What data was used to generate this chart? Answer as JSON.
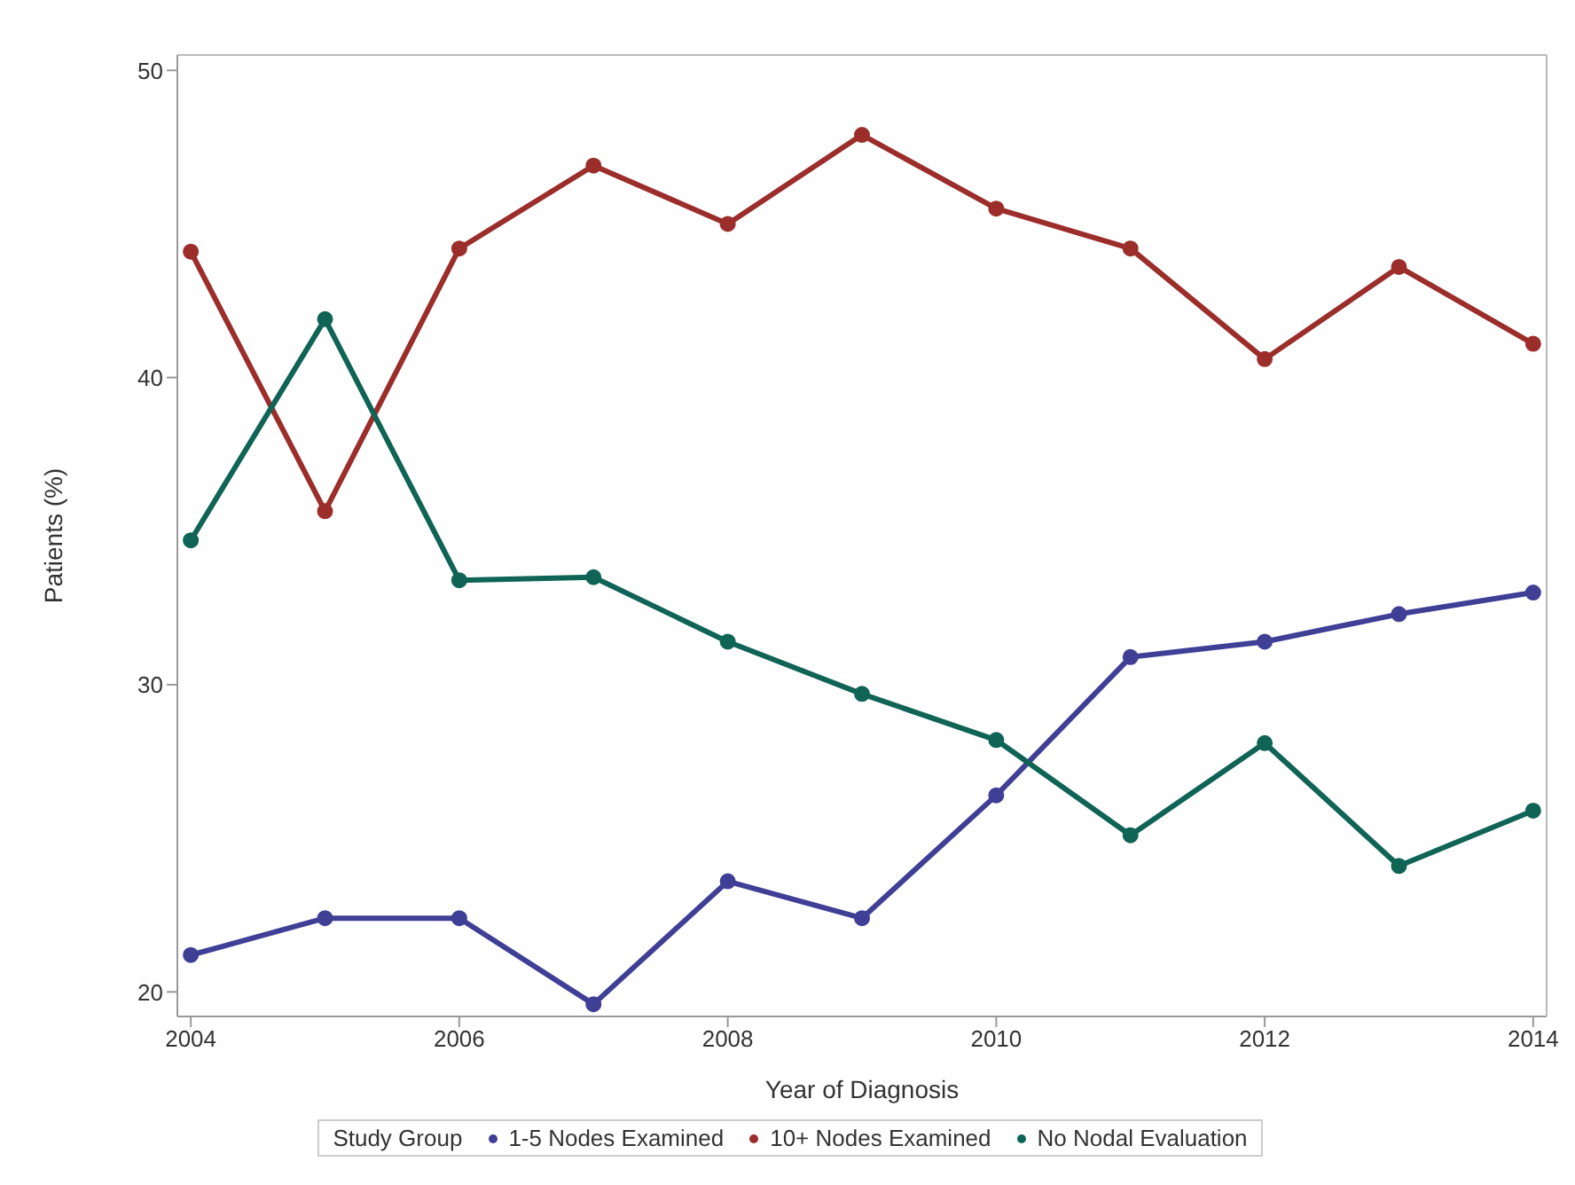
{
  "chart_data": {
    "type": "line",
    "xlabel": "Year of Diagnosis",
    "ylabel": "Patients (%)",
    "legend_title": "Study Group",
    "legend": "bottom",
    "marker": "circle",
    "line_style": "solid",
    "grid": false,
    "x": [
      2004,
      2005,
      2006,
      2007,
      2008,
      2009,
      2010,
      2011,
      2012,
      2013,
      2014
    ],
    "xlim": [
      2003.9,
      2014.1
    ],
    "xticks": [
      2004,
      2006,
      2008,
      2010,
      2012,
      2014
    ],
    "ylim": [
      19.2,
      50.5
    ],
    "yticks": [
      20,
      30,
      40,
      50
    ],
    "series": [
      {
        "name": "1-5 Nodes Examined",
        "color": "#3f3f96",
        "values": [
          21.2,
          22.4,
          22.4,
          19.6,
          23.6,
          22.4,
          26.4,
          30.9,
          31.4,
          32.3,
          33.0
        ]
      },
      {
        "name": "10+ Nodes Examined",
        "color": "#9b2d2a",
        "values": [
          44.1,
          35.65,
          44.2,
          46.9,
          45.0,
          47.9,
          45.5,
          44.2,
          40.6,
          43.6,
          41.1
        ]
      },
      {
        "name": "No Nodal Evaluation",
        "color": "#0f6456",
        "values": [
          34.7,
          41.9,
          33.4,
          33.5,
          31.4,
          29.7,
          28.2,
          25.1,
          28.1,
          24.1,
          25.9
        ]
      }
    ]
  }
}
